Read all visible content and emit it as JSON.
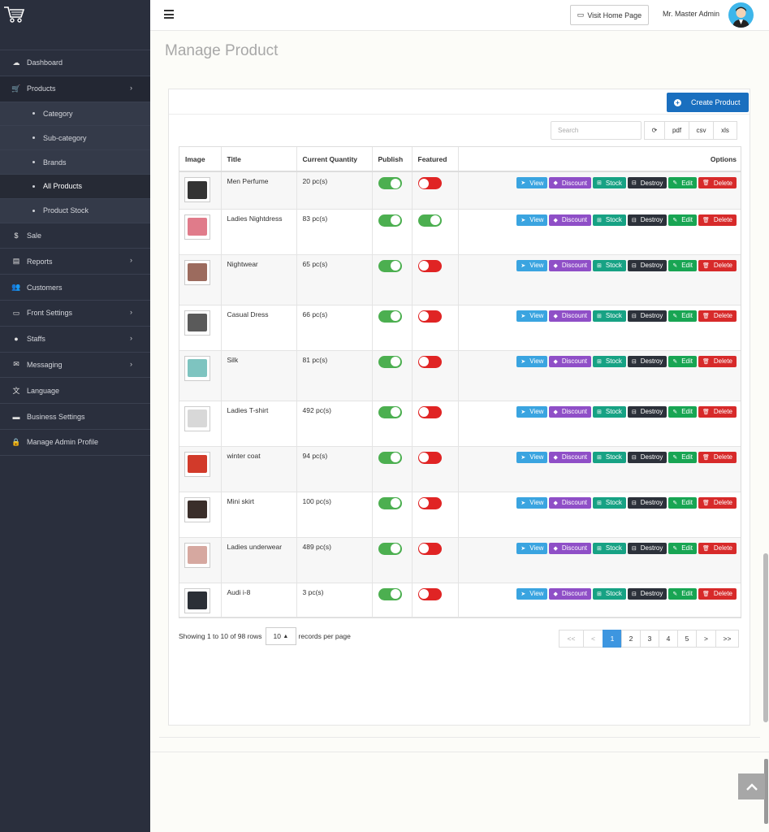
{
  "sidebar": {
    "items": [
      {
        "label": "Dashboard",
        "icon": "dashboard-icon",
        "glyph": "☁"
      },
      {
        "label": "Products",
        "icon": "cart-icon",
        "glyph": "🛒",
        "chevron": true,
        "active": true
      },
      {
        "label": "Sale",
        "icon": "dollar-icon",
        "glyph": "$"
      },
      {
        "label": "Reports",
        "icon": "file-icon",
        "glyph": "▤",
        "chevron": true
      },
      {
        "label": "Customers",
        "icon": "users-icon",
        "glyph": "👥"
      },
      {
        "label": "Front Settings",
        "icon": "monitor-icon",
        "glyph": "▭",
        "chevron": true
      },
      {
        "label": "Staffs",
        "icon": "user-icon",
        "glyph": "●",
        "chevron": true
      },
      {
        "label": "Messaging",
        "icon": "envelope-icon",
        "glyph": "✉",
        "chevron": true
      },
      {
        "label": "Language",
        "icon": "language-icon",
        "glyph": "文"
      },
      {
        "label": "Business Settings",
        "icon": "briefcase-icon",
        "glyph": "▬"
      },
      {
        "label": "Manage Admin Profile",
        "icon": "lock-icon",
        "glyph": "🔒"
      }
    ],
    "sub_items": [
      {
        "label": "Category"
      },
      {
        "label": "Sub-category"
      },
      {
        "label": "Brands"
      },
      {
        "label": "All Products",
        "active": true
      },
      {
        "label": "Product Stock"
      }
    ]
  },
  "header": {
    "visit_label": "Visit Home Page",
    "admin_name": "Mr. Master Admin"
  },
  "page_title": "Manage Product",
  "toolbar": {
    "create_label": "Create Product",
    "search_placeholder": "Search",
    "refresh_glyph": "⟳",
    "pdf": "pdf",
    "csv": "csv",
    "xls": "xls"
  },
  "table": {
    "headers": {
      "image": "Image",
      "title": "Title",
      "qty": "Current Quantity",
      "publish": "Publish",
      "featured": "Featured",
      "options": "Options"
    },
    "actions": {
      "view": "View",
      "discount": "Discount",
      "stock": "Stock",
      "destroy": "Destroy",
      "edit": "Edit",
      "delete": "Delete"
    },
    "rows": [
      {
        "title": "Men Perfume",
        "qty": "20 pc(s)",
        "publish": true,
        "featured": false,
        "color": "#333333"
      },
      {
        "title": "Ladies Nightdress",
        "qty": "83 pc(s)",
        "publish": true,
        "featured": true,
        "color": "#e07b8a"
      },
      {
        "title": "Nightwear",
        "qty": "65 pc(s)",
        "publish": true,
        "featured": false,
        "color": "#9c6b5e"
      },
      {
        "title": "Casual Dress",
        "qty": "66 pc(s)",
        "publish": true,
        "featured": false,
        "color": "#5a5a5a"
      },
      {
        "title": "Silk",
        "qty": "81 pc(s)",
        "publish": true,
        "featured": false,
        "color": "#7ec4c0"
      },
      {
        "title": "Ladies T-shirt",
        "qty": "492 pc(s)",
        "publish": true,
        "featured": false,
        "color": "#d8d8d8"
      },
      {
        "title": "winter coat",
        "qty": "94 pc(s)",
        "publish": true,
        "featured": false,
        "color": "#d23a2a"
      },
      {
        "title": "Mini skirt",
        "qty": "100 pc(s)",
        "publish": true,
        "featured": false,
        "color": "#3a2e2a"
      },
      {
        "title": "Ladies underwear",
        "qty": "489 pc(s)",
        "publish": true,
        "featured": false,
        "color": "#d6a8a0"
      },
      {
        "title": "Audi i-8",
        "qty": "3 pc(s)",
        "publish": true,
        "featured": false,
        "color": "#2b2f36"
      }
    ]
  },
  "footer": {
    "showing": "Showing 1 to 10 of 98 rows",
    "per_page": "10",
    "per_page_suffix": "records per page"
  },
  "pagination": [
    "<<",
    "<",
    "1",
    "2",
    "3",
    "4",
    "5",
    ">",
    ">>"
  ],
  "pagination_active": "1"
}
